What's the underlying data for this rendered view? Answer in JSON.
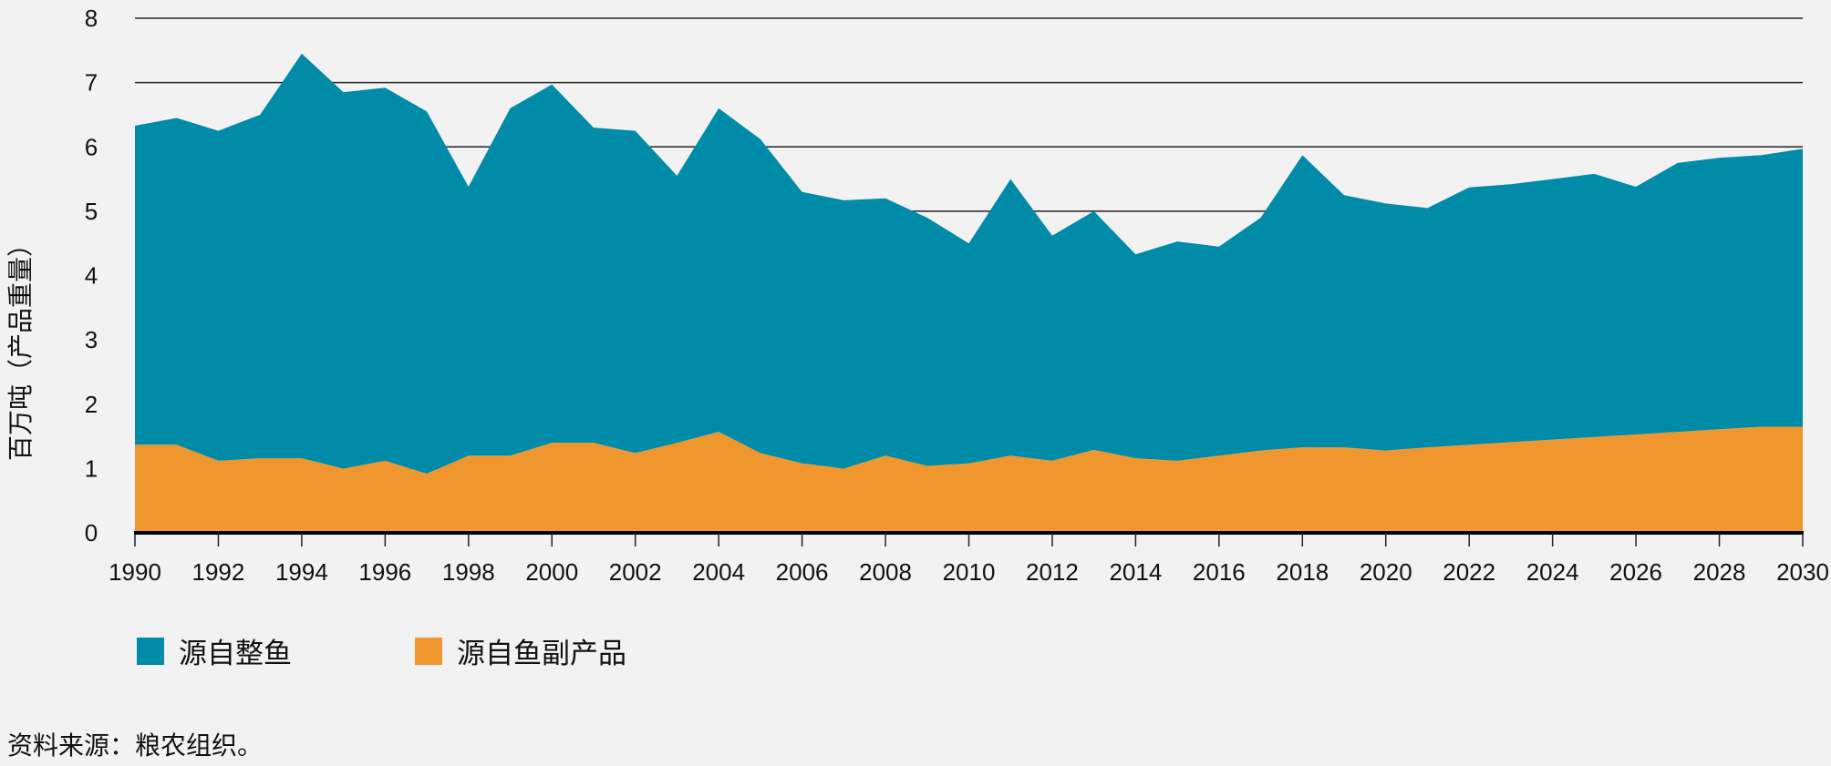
{
  "chart_data": {
    "type": "area",
    "stacked": true,
    "title": "",
    "xlabel": "",
    "ylabel": "百万吨（产品重量）",
    "ylim": [
      0,
      8
    ],
    "xlim": [
      1990,
      2030
    ],
    "yticks": [
      "0",
      "1",
      "2",
      "3",
      "4",
      "5",
      "6",
      "7",
      "8"
    ],
    "xticks": [
      "1990",
      "1992",
      "1994",
      "1996",
      "1998",
      "2000",
      "2002",
      "2004",
      "2006",
      "2008",
      "2010",
      "2012",
      "2014",
      "2016",
      "2018",
      "2020",
      "2022",
      "2024",
      "2026",
      "2028",
      "2030"
    ],
    "grid": "horizontal",
    "legend_position": "bottom-left",
    "x": [
      1990,
      1991,
      1992,
      1993,
      1994,
      1995,
      1996,
      1997,
      1998,
      1999,
      2000,
      2001,
      2002,
      2003,
      2004,
      2005,
      2006,
      2007,
      2008,
      2009,
      2010,
      2011,
      2012,
      2013,
      2014,
      2015,
      2016,
      2017,
      2018,
      2019,
      2020,
      2021,
      2022,
      2023,
      2024,
      2025,
      2026,
      2027,
      2028,
      2029,
      2030
    ],
    "series": [
      {
        "name": "源自鱼副产品",
        "color": "#f0962f",
        "values": [
          1.37,
          1.37,
          1.12,
          1.16,
          1.16,
          1.0,
          1.12,
          0.92,
          1.2,
          1.2,
          1.4,
          1.4,
          1.24,
          1.4,
          1.57,
          1.24,
          1.08,
          1.0,
          1.2,
          1.04,
          1.08,
          1.2,
          1.12,
          1.29,
          1.16,
          1.12,
          1.2,
          1.28,
          1.33,
          1.33,
          1.28,
          1.33,
          1.37,
          1.41,
          1.45,
          1.49,
          1.53,
          1.57,
          1.61,
          1.65,
          1.65
        ]
      },
      {
        "name": "源自整鱼",
        "color": "#008ba8",
        "values": [
          4.96,
          5.08,
          5.13,
          5.34,
          6.29,
          5.85,
          5.8,
          5.63,
          4.18,
          5.4,
          5.57,
          4.9,
          5.01,
          4.15,
          5.03,
          4.88,
          4.22,
          4.17,
          4.0,
          3.86,
          3.42,
          4.3,
          3.5,
          3.71,
          3.17,
          3.41,
          3.25,
          3.62,
          4.54,
          3.92,
          3.84,
          3.72,
          4.0,
          4.01,
          4.05,
          4.09,
          3.85,
          4.18,
          4.22,
          4.22,
          4.32
        ]
      }
    ]
  },
  "legend": {
    "items": [
      {
        "label": "源自整鱼",
        "color": "#008ba8"
      },
      {
        "label": "源自鱼副产品",
        "color": "#f0962f"
      }
    ]
  },
  "source": "资料来源：粮农组织。"
}
